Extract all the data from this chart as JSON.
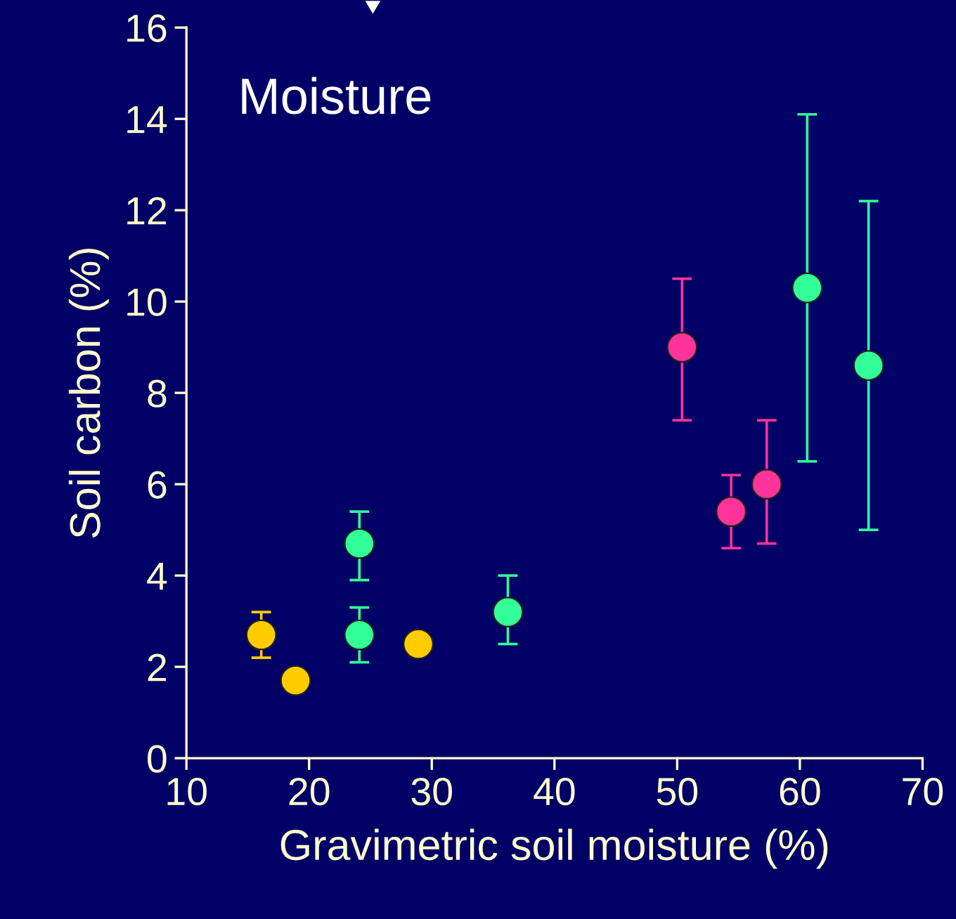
{
  "chart_data": {
    "type": "scatter",
    "title": "Moisture",
    "xlabel": "Gravimetric soil moisture (%)",
    "ylabel": "Soil carbon (%)",
    "xlim": [
      10,
      70
    ],
    "xticks": [
      10,
      20,
      30,
      40,
      50,
      60,
      70
    ],
    "ylim": [
      0,
      16
    ],
    "yticks": [
      0,
      2,
      4,
      6,
      8,
      10,
      12,
      14,
      16
    ],
    "grid": false,
    "legend": false,
    "marker": "circle",
    "series": [
      {
        "color": "#ffcc00",
        "x": [
          16.1,
          18.9,
          28.9
        ],
        "values": [
          2.7,
          1.7,
          2.5
        ],
        "errors": [
          [
            2.2,
            3.2
          ],
          null,
          null
        ]
      },
      {
        "color": "#33ff99",
        "x": [
          24.1,
          24.1,
          36.2,
          60.6,
          65.6
        ],
        "values": [
          4.7,
          2.7,
          3.2,
          10.3,
          8.6
        ],
        "errors": [
          [
            3.9,
            5.4
          ],
          [
            2.1,
            3.3
          ],
          [
            2.5,
            4.0
          ],
          [
            6.5,
            14.1
          ],
          [
            5.0,
            12.2
          ]
        ]
      },
      {
        "color": "#ff3399",
        "x": [
          50.4,
          54.4,
          57.3
        ],
        "values": [
          9.0,
          5.4,
          6.0
        ],
        "errors": [
          [
            7.4,
            10.5
          ],
          [
            4.6,
            6.2
          ],
          [
            4.7,
            7.4
          ]
        ]
      }
    ]
  }
}
